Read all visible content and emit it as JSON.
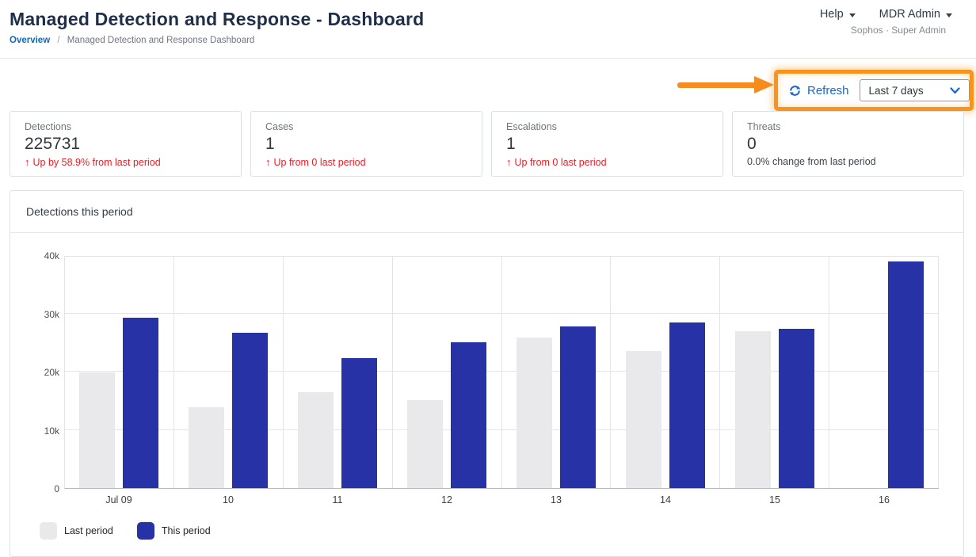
{
  "header": {
    "title": "Managed Detection and Response - Dashboard",
    "breadcrumb": {
      "link": "Overview",
      "separator": "/",
      "current": "Managed Detection and Response Dashboard"
    },
    "help_label": "Help",
    "account_label": "MDR Admin",
    "account_sub": "Sophos · Super Admin"
  },
  "toolbar": {
    "refresh_label": "Refresh",
    "period_selector_value": "Last 7 days"
  },
  "icons": {
    "up_arrow": "↑"
  },
  "stat_cards": [
    {
      "label": "Detections",
      "value": "225731",
      "delta": "Up by 58.9% from last period",
      "delta_direction": "up",
      "delta_color": "red"
    },
    {
      "label": "Cases",
      "value": "1",
      "delta": "Up from 0 last period",
      "delta_direction": "up",
      "delta_color": "red"
    },
    {
      "label": "Escalations",
      "value": "1",
      "delta": "Up from 0 last period",
      "delta_direction": "up",
      "delta_color": "red"
    },
    {
      "label": "Threats",
      "value": "0",
      "delta": "0.0% change from last period",
      "delta_direction": "none",
      "delta_color": "neutral"
    }
  ],
  "chart_panel": {
    "title": "Detections this period"
  },
  "chart_data": {
    "type": "bar",
    "title": "Detections this period",
    "categories": [
      "Jul 09",
      "10",
      "11",
      "12",
      "13",
      "14",
      "15",
      "16"
    ],
    "series": [
      {
        "name": "Last period",
        "color": "#e9e9eb",
        "values": [
          19800,
          13900,
          16400,
          15100,
          25900,
          23600,
          26900,
          0
        ]
      },
      {
        "name": "This period",
        "color": "#2632a5",
        "values": [
          29200,
          26600,
          22300,
          25100,
          27800,
          28400,
          27300,
          38900
        ]
      }
    ],
    "xlabel": "",
    "ylabel": "",
    "ylim": [
      0,
      40000
    ],
    "yticks": [
      "0",
      "10k",
      "20k",
      "30k",
      "40k"
    ],
    "grid": true,
    "legend_position": "bottom-left"
  },
  "colors": {
    "link_blue": "#1b66c9",
    "bar_blue": "#2632a5",
    "bar_gray": "#e9e9eb",
    "alert_red": "#ed1c24",
    "annotation_orange": "#f7941d",
    "title_navy": "#1f2e49"
  }
}
